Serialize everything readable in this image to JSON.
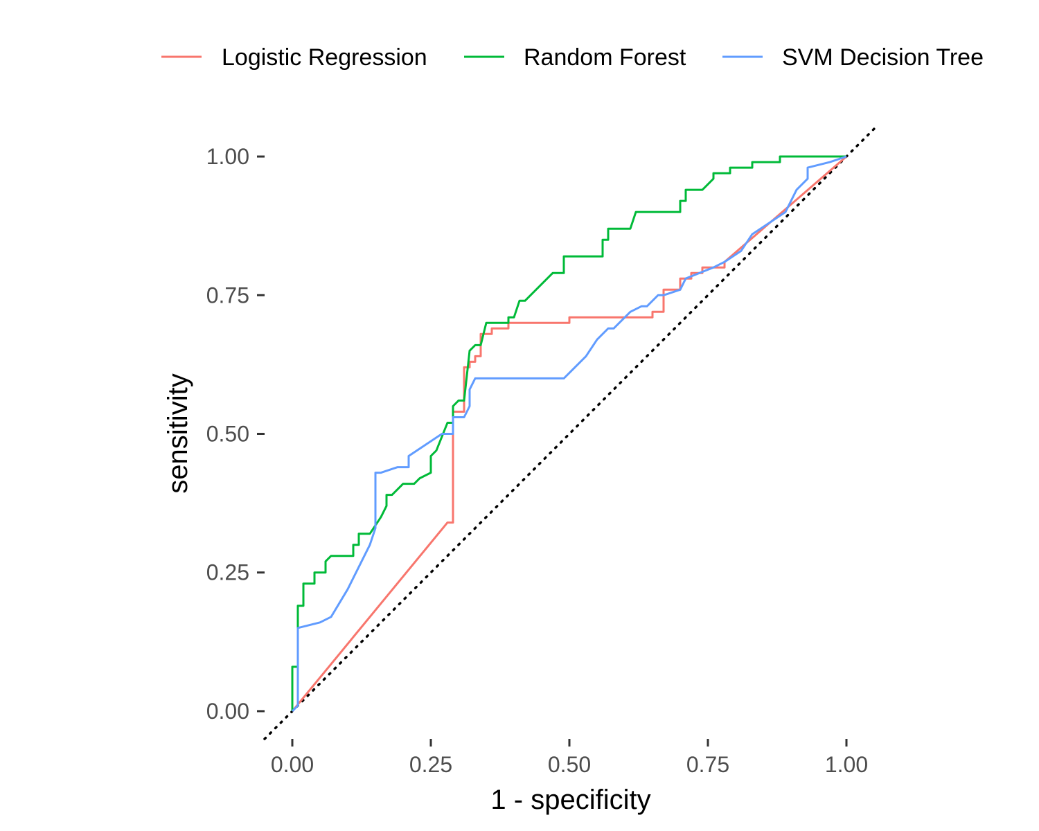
{
  "chart_data": {
    "type": "line",
    "xlabel": "1 - specificity",
    "ylabel": "sensitivity",
    "xlim": [
      -0.05,
      1.05
    ],
    "ylim": [
      -0.05,
      1.05
    ],
    "x_ticks": [
      0,
      0.25,
      0.5,
      0.75,
      1
    ],
    "x_tick_labels": [
      "0.00",
      "0.25",
      "0.50",
      "0.75",
      "1.00"
    ],
    "y_ticks": [
      0,
      0.25,
      0.5,
      0.75,
      1
    ],
    "y_tick_labels": [
      "0.00",
      "0.25",
      "0.50",
      "0.75",
      "1.00"
    ],
    "grid": false,
    "legend_position": "top",
    "reference_line": {
      "style": "dotted",
      "color": "#000000",
      "from": [
        -0.05,
        -0.05
      ],
      "to": [
        1.05,
        1.05
      ]
    },
    "series": [
      {
        "name": "Logistic Regression",
        "color": "#F8766D",
        "points": [
          [
            0,
            0
          ],
          [
            0.28,
            0.34
          ],
          [
            0.29,
            0.34
          ],
          [
            0.29,
            0.54
          ],
          [
            0.31,
            0.54
          ],
          [
            0.31,
            0.62
          ],
          [
            0.32,
            0.62
          ],
          [
            0.32,
            0.63
          ],
          [
            0.33,
            0.63
          ],
          [
            0.33,
            0.64
          ],
          [
            0.34,
            0.64
          ],
          [
            0.34,
            0.68
          ],
          [
            0.36,
            0.68
          ],
          [
            0.36,
            0.69
          ],
          [
            0.39,
            0.69
          ],
          [
            0.39,
            0.7
          ],
          [
            0.5,
            0.7
          ],
          [
            0.5,
            0.71
          ],
          [
            0.65,
            0.71
          ],
          [
            0.65,
            0.72
          ],
          [
            0.67,
            0.72
          ],
          [
            0.67,
            0.76
          ],
          [
            0.7,
            0.76
          ],
          [
            0.7,
            0.78
          ],
          [
            0.72,
            0.78
          ],
          [
            0.72,
            0.79
          ],
          [
            0.74,
            0.79
          ],
          [
            0.74,
            0.8
          ],
          [
            0.78,
            0.8
          ],
          [
            0.78,
            0.81
          ],
          [
            1,
            1
          ]
        ]
      },
      {
        "name": "Random Forest",
        "color": "#00BA38",
        "points": [
          [
            0,
            0
          ],
          [
            0,
            0.08
          ],
          [
            0.01,
            0.08
          ],
          [
            0.01,
            0.19
          ],
          [
            0.02,
            0.19
          ],
          [
            0.02,
            0.23
          ],
          [
            0.04,
            0.23
          ],
          [
            0.04,
            0.25
          ],
          [
            0.06,
            0.25
          ],
          [
            0.06,
            0.27
          ],
          [
            0.07,
            0.28
          ],
          [
            0.11,
            0.28
          ],
          [
            0.11,
            0.3
          ],
          [
            0.12,
            0.3
          ],
          [
            0.12,
            0.32
          ],
          [
            0.14,
            0.32
          ],
          [
            0.16,
            0.35
          ],
          [
            0.17,
            0.37
          ],
          [
            0.17,
            0.39
          ],
          [
            0.18,
            0.39
          ],
          [
            0.2,
            0.41
          ],
          [
            0.22,
            0.41
          ],
          [
            0.23,
            0.42
          ],
          [
            0.25,
            0.43
          ],
          [
            0.25,
            0.46
          ],
          [
            0.26,
            0.47
          ],
          [
            0.28,
            0.52
          ],
          [
            0.29,
            0.52
          ],
          [
            0.29,
            0.55
          ],
          [
            0.3,
            0.56
          ],
          [
            0.31,
            0.56
          ],
          [
            0.32,
            0.65
          ],
          [
            0.33,
            0.66
          ],
          [
            0.34,
            0.66
          ],
          [
            0.35,
            0.7
          ],
          [
            0.39,
            0.7
          ],
          [
            0.39,
            0.71
          ],
          [
            0.4,
            0.71
          ],
          [
            0.41,
            0.74
          ],
          [
            0.42,
            0.74
          ],
          [
            0.47,
            0.79
          ],
          [
            0.49,
            0.79
          ],
          [
            0.49,
            0.82
          ],
          [
            0.56,
            0.82
          ],
          [
            0.56,
            0.85
          ],
          [
            0.57,
            0.85
          ],
          [
            0.57,
            0.87
          ],
          [
            0.61,
            0.87
          ],
          [
            0.62,
            0.9
          ],
          [
            0.7,
            0.9
          ],
          [
            0.7,
            0.92
          ],
          [
            0.71,
            0.92
          ],
          [
            0.71,
            0.94
          ],
          [
            0.74,
            0.94
          ],
          [
            0.76,
            0.96
          ],
          [
            0.76,
            0.97
          ],
          [
            0.79,
            0.97
          ],
          [
            0.79,
            0.98
          ],
          [
            0.83,
            0.98
          ],
          [
            0.83,
            0.99
          ],
          [
            0.88,
            0.99
          ],
          [
            0.88,
            1.0
          ],
          [
            1,
            1
          ]
        ]
      },
      {
        "name": "SVM Decision Tree",
        "color": "#619CFF",
        "points": [
          [
            0,
            0
          ],
          [
            0.01,
            0.01
          ],
          [
            0.01,
            0.15
          ],
          [
            0.05,
            0.16
          ],
          [
            0.07,
            0.17
          ],
          [
            0.1,
            0.22
          ],
          [
            0.14,
            0.3
          ],
          [
            0.15,
            0.33
          ],
          [
            0.15,
            0.43
          ],
          [
            0.16,
            0.43
          ],
          [
            0.19,
            0.44
          ],
          [
            0.21,
            0.44
          ],
          [
            0.21,
            0.46
          ],
          [
            0.27,
            0.5
          ],
          [
            0.29,
            0.5
          ],
          [
            0.29,
            0.53
          ],
          [
            0.31,
            0.53
          ],
          [
            0.32,
            0.55
          ],
          [
            0.32,
            0.58
          ],
          [
            0.33,
            0.6
          ],
          [
            0.49,
            0.6
          ],
          [
            0.53,
            0.64
          ],
          [
            0.55,
            0.67
          ],
          [
            0.57,
            0.69
          ],
          [
            0.58,
            0.69
          ],
          [
            0.61,
            0.72
          ],
          [
            0.63,
            0.73
          ],
          [
            0.64,
            0.73
          ],
          [
            0.66,
            0.75
          ],
          [
            0.67,
            0.75
          ],
          [
            0.7,
            0.76
          ],
          [
            0.71,
            0.78
          ],
          [
            0.76,
            0.8
          ],
          [
            0.78,
            0.81
          ],
          [
            0.81,
            0.83
          ],
          [
            0.83,
            0.86
          ],
          [
            0.86,
            0.88
          ],
          [
            0.89,
            0.9
          ],
          [
            0.91,
            0.94
          ],
          [
            0.93,
            0.96
          ],
          [
            0.93,
            0.98
          ],
          [
            0.97,
            0.99
          ],
          [
            1,
            1
          ]
        ]
      }
    ]
  }
}
